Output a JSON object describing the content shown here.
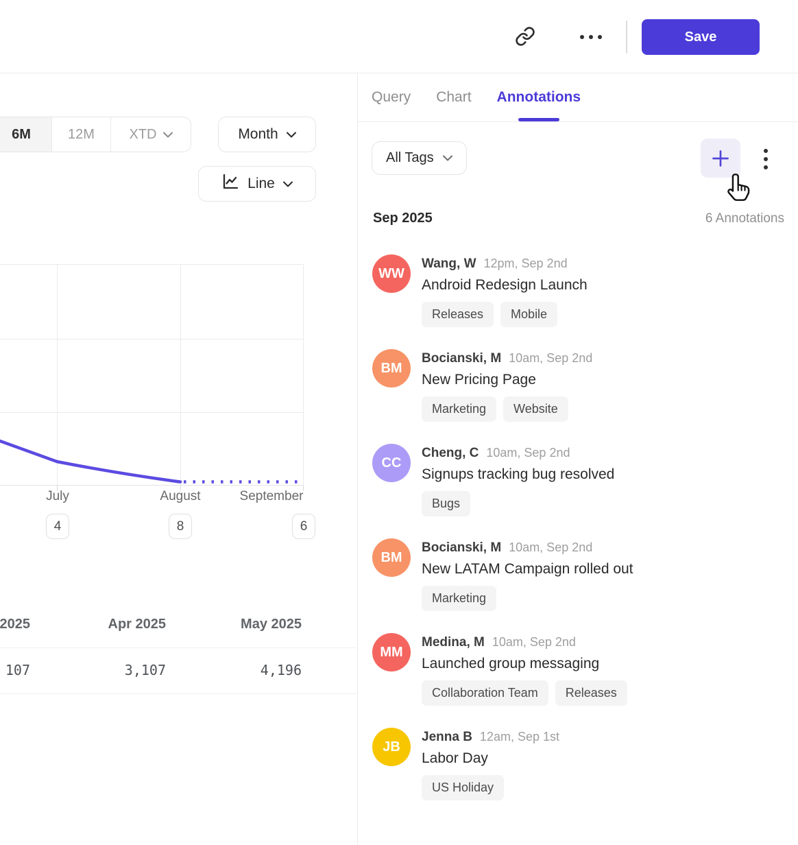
{
  "header": {
    "save_label": "Save"
  },
  "tabs": [
    {
      "label": "Query",
      "active": false
    },
    {
      "label": "Chart",
      "active": false
    },
    {
      "label": "Annotations",
      "active": true
    }
  ],
  "chart_panel": {
    "range_buttons": [
      "6M",
      "12M",
      "XTD"
    ],
    "selected_range": "6M",
    "granularity_label": "Month",
    "chart_type_label": "Line",
    "x_labels": [
      "July",
      "August",
      "September"
    ],
    "x_badges": [
      "4",
      "8",
      "6"
    ],
    "table": {
      "headers": [
        "2025",
        "Apr 2025",
        "May 2025"
      ],
      "values": [
        "107",
        "3,107",
        "4,196"
      ]
    },
    "chart_data": {
      "type": "line",
      "title": "",
      "x_tick_labels": [
        "July",
        "August",
        "September"
      ],
      "x_tick_annotation_badges": [
        4,
        8,
        6
      ],
      "y_axis": "unlabeled (no tick values visible)",
      "grid": true,
      "series": [
        {
          "name": "metric (unlabeled)",
          "line_color": "#5b4be1",
          "style": "solid through August, dotted (projection) from August to September",
          "points_rel_height_above_bottom": [
            {
              "x": "left-edge (pre-July)",
              "y": 0.2
            },
            {
              "x": "July",
              "y": 0.11
            },
            {
              "x": "August",
              "y": 0.02
            },
            {
              "x": "September",
              "y": 0.02
            }
          ]
        }
      ]
    }
  },
  "annotations_panel": {
    "filter_label": "All Tags",
    "month_header": "Sep 2025",
    "count_label": "6 Annotations",
    "items": [
      {
        "initials": "WW",
        "color": "#f5655f",
        "name": "Wang, W",
        "time": "12pm, Sep 2nd",
        "title": "Android Redesign Launch",
        "tags": [
          "Releases",
          "Mobile"
        ]
      },
      {
        "initials": "BM",
        "color": "#f79367",
        "name": "Bocianski, M",
        "time": "10am, Sep 2nd",
        "title": "New Pricing Page",
        "tags": [
          "Marketing",
          "Website"
        ]
      },
      {
        "initials": "CC",
        "color": "#ac9bf7",
        "name": "Cheng, C",
        "time": "10am, Sep 2nd",
        "title": "Signups tracking bug resolved",
        "tags": [
          "Bugs"
        ]
      },
      {
        "initials": "BM",
        "color": "#f79367",
        "name": "Bocianski, M",
        "time": "10am, Sep 2nd",
        "title": "New LATAM Campaign rolled out",
        "tags": [
          "Marketing"
        ]
      },
      {
        "initials": "MM",
        "color": "#f5655f",
        "name": "Medina, M",
        "time": "10am, Sep 2nd",
        "title": "Launched group messaging",
        "tags": [
          "Collaboration Team",
          "Releases"
        ]
      },
      {
        "initials": "JB",
        "color": "#f7c600",
        "name": "Jenna B",
        "time": "12am, Sep 1st",
        "title": "Labor Day",
        "tags": [
          "US Holiday"
        ]
      }
    ]
  },
  "colors": {
    "accent_indigo": "#4b3bd8",
    "chart_line": "#5b4be1",
    "plus_button_bg": "#efeef8",
    "tag_bg": "#f4f4f4"
  }
}
